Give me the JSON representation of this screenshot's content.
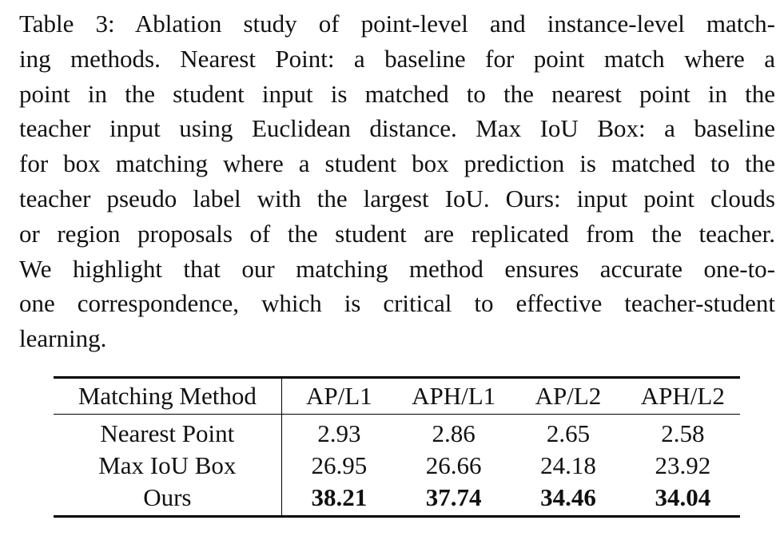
{
  "caption": {
    "lines": [
      "Table 3: Ablation study of point-level and instance-level match-",
      "ing methods. Nearest Point: a baseline for point match where a",
      "point in the student input is matched to the nearest point in the",
      "teacher input using Euclidean distance. Max IoU Box: a baseline",
      "for box matching where a student box prediction is matched to the",
      "teacher pseudo label with the largest IoU. Ours: input point clouds",
      "or region proposals of the student are replicated from the teacher.",
      "We highlight that our matching method ensures accurate one-to-",
      "one correspondence, which is critical to effective teacher-student",
      "learning."
    ]
  },
  "table": {
    "headers": [
      "Matching Method",
      "AP/L1",
      "APH/L1",
      "AP/L2",
      "APH/L2"
    ],
    "rows": [
      {
        "method": "Nearest Point",
        "values": [
          "2.93",
          "2.86",
          "2.65",
          "2.58"
        ],
        "bold": false
      },
      {
        "method": "Max IoU Box",
        "values": [
          "26.95",
          "26.66",
          "24.18",
          "23.92"
        ],
        "bold": false
      },
      {
        "method": "Ours",
        "values": [
          "38.21",
          "37.74",
          "34.46",
          "34.04"
        ],
        "bold": true
      }
    ]
  }
}
